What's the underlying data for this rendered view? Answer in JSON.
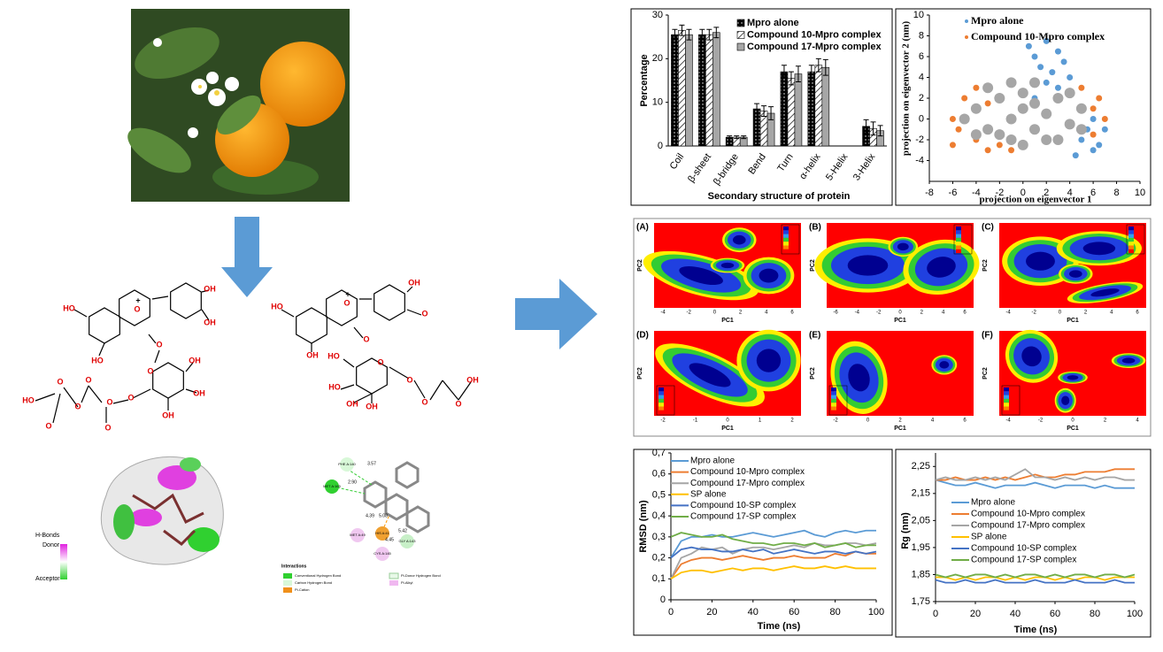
{
  "chart_data": [
    {
      "type": "bar",
      "ylabel": "Percentage",
      "xlabel": "Secondary structure of protein",
      "categories": [
        "Coil",
        "β-sheet",
        "β-bridge",
        "Bend",
        "Turn",
        "α-helix",
        "5-Helix",
        "3-Helix"
      ],
      "ylim": [
        0,
        30
      ],
      "yticks": [
        0,
        10,
        20,
        30
      ],
      "grid": false,
      "legend": "top-right",
      "series": [
        {
          "name": "Mpro alone",
          "color": "#000000",
          "pattern": "dots",
          "values": [
            25.5,
            25.5,
            2,
            8.5,
            17,
            17,
            0,
            4.5
          ],
          "errors": [
            1.2,
            1.2,
            0.3,
            1.2,
            1.5,
            1.5,
            0,
            1.5
          ]
        },
        {
          "name": "Compound 10-Mpro complex",
          "color": "#ffffff",
          "pattern": "hatch",
          "values": [
            26.5,
            25.5,
            2,
            8,
            15.5,
            18.5,
            0,
            4
          ],
          "errors": [
            1.2,
            1.2,
            0.3,
            1.2,
            1.5,
            1.5,
            0,
            1.5
          ]
        },
        {
          "name": "Compound 17-Mpro complex",
          "color": "#a6a6a6",
          "values": [
            25.5,
            26,
            2,
            7.5,
            16.5,
            18,
            0,
            3.5
          ],
          "errors": [
            1.2,
            1.2,
            0.3,
            1.5,
            1.8,
            1.8,
            0,
            1.2
          ]
        }
      ]
    },
    {
      "type": "scatter",
      "xlabel": "projection on eigenvector 1",
      "ylabel": "projection on eigenvector 2 (nm)",
      "xlim": [
        -8,
        10
      ],
      "xticks": [
        -8,
        -6,
        -4,
        -2,
        0,
        2,
        4,
        6,
        8,
        10
      ],
      "ylim": [
        -6,
        10
      ],
      "yticks": [
        -4,
        -2,
        0,
        2,
        4,
        6,
        8,
        10
      ],
      "legend": "top-left",
      "series": [
        {
          "name": "Mpro alone",
          "color": "#5b9bd5",
          "x": [
            1,
            2,
            1.5,
            3,
            2.5,
            0.5,
            3.5,
            4,
            2,
            5,
            6,
            5.5,
            6.5,
            4.5,
            6,
            7,
            1,
            3
          ],
          "y": [
            6,
            7.5,
            5,
            6.5,
            4.5,
            7,
            5.5,
            4,
            3.5,
            -2,
            -3,
            -1,
            -2.5,
            -3.5,
            0,
            -1,
            2,
            3
          ]
        },
        {
          "name": "Compound 10-Mpro complex",
          "color": "#ed7d31",
          "x": [
            -6,
            -5,
            -4,
            -5.5,
            -3,
            -4,
            -2,
            -1,
            6,
            7,
            6.5,
            5,
            -6,
            -3,
            6
          ],
          "y": [
            0,
            2,
            -2,
            -1,
            1.5,
            3,
            -2.5,
            -3,
            1,
            0,
            2,
            3,
            -2.5,
            -3,
            -1.5
          ]
        },
        {
          "color": "#a6a6a6",
          "x": [
            -5,
            -4,
            -3,
            -2,
            -1,
            0,
            1,
            2,
            3,
            4,
            5,
            -3,
            -1,
            1,
            3,
            0,
            -2,
            4,
            5,
            -4,
            2,
            0,
            -1,
            1
          ],
          "y": [
            0,
            1,
            -1,
            2,
            0,
            1,
            -1,
            0.5,
            2,
            -0.5,
            1,
            3,
            3.5,
            3.5,
            -2,
            -2.5,
            -1.5,
            2.5,
            -1,
            -1.5,
            -2,
            2.5,
            -2,
            1.5
          ]
        }
      ]
    },
    {
      "type": "line",
      "xlabel": "Time (ns)",
      "ylabel": "RMSD (nm)",
      "x": [
        0,
        5,
        10,
        15,
        20,
        25,
        30,
        35,
        40,
        45,
        50,
        55,
        60,
        65,
        70,
        75,
        80,
        85,
        90,
        95,
        100
      ],
      "xlim": [
        0,
        100
      ],
      "xticks": [
        0,
        20,
        40,
        60,
        80,
        100
      ],
      "ylim": [
        0,
        0.7
      ],
      "yticks": [
        0,
        {
          "value": 0.1,
          "label": "0,1"
        },
        {
          "value": 0.2,
          "label": "0,2"
        },
        {
          "value": 0.3,
          "label": "0,3"
        },
        {
          "value": 0.4,
          "label": "0,4"
        },
        {
          "value": 0.5,
          "label": "0,5"
        },
        {
          "value": 0.6,
          "label": "0,6"
        },
        {
          "value": 0.7,
          "label": "0,7"
        }
      ],
      "legend": "top-left",
      "series": [
        {
          "name": "Mpro alone",
          "color": "#5b9bd5",
          "values": [
            0.2,
            0.28,
            0.3,
            0.3,
            0.31,
            0.3,
            0.3,
            0.31,
            0.32,
            0.31,
            0.3,
            0.31,
            0.32,
            0.33,
            0.31,
            0.3,
            0.32,
            0.33,
            0.32,
            0.33,
            0.33
          ]
        },
        {
          "name": "Compound 10-Mpro complex",
          "color": "#ed7d31",
          "values": [
            0.1,
            0.17,
            0.19,
            0.2,
            0.2,
            0.19,
            0.2,
            0.21,
            0.2,
            0.19,
            0.2,
            0.2,
            0.21,
            0.2,
            0.2,
            0.2,
            0.22,
            0.21,
            0.23,
            0.22,
            0.22
          ]
        },
        {
          "name": "Compound 17-Mpro complex",
          "color": "#a5a5a5",
          "values": [
            0.1,
            0.2,
            0.22,
            0.25,
            0.24,
            0.25,
            0.22,
            0.24,
            0.25,
            0.25,
            0.24,
            0.25,
            0.26,
            0.25,
            0.27,
            0.26,
            0.26,
            0.27,
            0.27,
            0.26,
            0.27
          ]
        },
        {
          "name": "SP alone",
          "color": "#ffc000",
          "values": [
            0.1,
            0.13,
            0.14,
            0.14,
            0.13,
            0.14,
            0.15,
            0.14,
            0.15,
            0.15,
            0.14,
            0.15,
            0.16,
            0.15,
            0.15,
            0.16,
            0.15,
            0.16,
            0.15,
            0.15,
            0.15
          ]
        },
        {
          "name": "Compound 10-SP complex",
          "color": "#4472c4",
          "values": [
            0.2,
            0.24,
            0.25,
            0.24,
            0.24,
            0.23,
            0.23,
            0.24,
            0.23,
            0.24,
            0.22,
            0.23,
            0.24,
            0.23,
            0.22,
            0.23,
            0.23,
            0.22,
            0.23,
            0.22,
            0.23
          ]
        },
        {
          "name": "Compound 17-SP complex",
          "color": "#70ad47",
          "values": [
            0.3,
            0.32,
            0.31,
            0.3,
            0.3,
            0.31,
            0.29,
            0.28,
            0.27,
            0.27,
            0.26,
            0.27,
            0.27,
            0.26,
            0.27,
            0.25,
            0.26,
            0.27,
            0.25,
            0.26,
            0.26
          ]
        }
      ]
    },
    {
      "type": "line",
      "xlabel": "Time (ns)",
      "ylabel": "Rg (nm)",
      "x": [
        0,
        5,
        10,
        15,
        20,
        25,
        30,
        35,
        40,
        45,
        50,
        55,
        60,
        65,
        70,
        75,
        80,
        85,
        90,
        95,
        100
      ],
      "xlim": [
        0,
        100
      ],
      "xticks": [
        0,
        20,
        40,
        60,
        80,
        100
      ],
      "ylim": [
        1.75,
        2.3
      ],
      "yticks": [
        {
          "value": 1.75,
          "label": "1,75"
        },
        {
          "value": 1.85,
          "label": "1,85"
        },
        {
          "value": 1.95,
          "label": "1,95"
        },
        {
          "value": 2.05,
          "label": "2,05"
        },
        {
          "value": 2.15,
          "label": "2,15"
        },
        {
          "value": 2.25,
          "label": "2,25"
        }
      ],
      "legend": "center",
      "series": [
        {
          "name": "Mpro alone",
          "color": "#5b9bd5",
          "values": [
            2.2,
            2.19,
            2.18,
            2.18,
            2.19,
            2.18,
            2.17,
            2.18,
            2.18,
            2.18,
            2.19,
            2.18,
            2.17,
            2.18,
            2.18,
            2.18,
            2.17,
            2.18,
            2.17,
            2.17,
            2.17
          ]
        },
        {
          "name": "Compound 10-Mpro complex",
          "color": "#ed7d31",
          "values": [
            2.2,
            2.2,
            2.21,
            2.2,
            2.2,
            2.21,
            2.2,
            2.21,
            2.2,
            2.21,
            2.22,
            2.21,
            2.21,
            2.22,
            2.22,
            2.23,
            2.23,
            2.23,
            2.24,
            2.24,
            2.24
          ]
        },
        {
          "name": "Compound 17-Mpro complex",
          "color": "#a5a5a5",
          "values": [
            2.2,
            2.21,
            2.2,
            2.2,
            2.21,
            2.2,
            2.21,
            2.2,
            2.22,
            2.24,
            2.21,
            2.21,
            2.2,
            2.21,
            2.2,
            2.21,
            2.2,
            2.21,
            2.21,
            2.2,
            2.2
          ]
        },
        {
          "name": "SP alone",
          "color": "#ffc000",
          "values": [
            1.84,
            1.84,
            1.83,
            1.84,
            1.83,
            1.84,
            1.84,
            1.83,
            1.84,
            1.83,
            1.84,
            1.84,
            1.83,
            1.84,
            1.83,
            1.84,
            1.84,
            1.83,
            1.84,
            1.84,
            1.84
          ]
        },
        {
          "name": "Compound 10-SP complex",
          "color": "#4472c4",
          "values": [
            1.83,
            1.82,
            1.82,
            1.83,
            1.82,
            1.82,
            1.83,
            1.82,
            1.82,
            1.82,
            1.83,
            1.82,
            1.82,
            1.82,
            1.83,
            1.82,
            1.82,
            1.82,
            1.83,
            1.82,
            1.82
          ]
        },
        {
          "name": "Compound 17-SP complex",
          "color": "#70ad47",
          "values": [
            1.85,
            1.84,
            1.85,
            1.84,
            1.85,
            1.85,
            1.84,
            1.85,
            1.84,
            1.85,
            1.85,
            1.84,
            1.85,
            1.84,
            1.85,
            1.85,
            1.84,
            1.85,
            1.85,
            1.84,
            1.85
          ]
        }
      ]
    }
  ],
  "fel_panels": [
    {
      "label": "(A)",
      "xlabel": "PC1",
      "ylabel": "PC2",
      "xticks": [
        "-4",
        "-2",
        "0",
        "2",
        "4",
        "6"
      ]
    },
    {
      "label": "(B)",
      "xlabel": "PC1",
      "ylabel": "PC2",
      "xticks": [
        "-6",
        "-4",
        "-2",
        "0",
        "2",
        "4",
        "6"
      ]
    },
    {
      "label": "(C)",
      "xlabel": "PC1",
      "ylabel": "PC2",
      "xticks": [
        "-4",
        "-2",
        "0",
        "2",
        "4",
        "6"
      ]
    },
    {
      "label": "(D)",
      "xlabel": "PC1",
      "ylabel": "PC2",
      "xticks": [
        "-2",
        "-1",
        "0",
        "1",
        "2"
      ]
    },
    {
      "label": "(E)",
      "xlabel": "PC1",
      "ylabel": "PC2",
      "xticks": [
        "-2",
        "0",
        "2",
        "4",
        "6"
      ]
    },
    {
      "label": "(F)",
      "xlabel": "PC1",
      "ylabel": "PC2",
      "xticks": [
        "-4",
        "-2",
        "0",
        "2",
        "4"
      ]
    }
  ],
  "molecules": [
    {
      "labels": [
        "HO",
        "O",
        "OH",
        "OH",
        "HO",
        "O",
        "O",
        "OH",
        "OH",
        "OH",
        "O",
        "O",
        "O",
        "O",
        "O",
        "O",
        "O",
        "HO",
        "+"
      ]
    },
    {
      "labels": [
        "HO",
        "O",
        "OH",
        "O",
        "OH",
        "O",
        "HO",
        "O",
        "HO",
        "OH",
        "OH",
        "O",
        "O",
        "OH",
        "O",
        "+"
      ]
    }
  ],
  "docking": {
    "legend_title": "H-Bonds",
    "donor": "Donor",
    "acceptor": "Acceptor"
  },
  "interactions": {
    "residues": [
      "PHE A:140",
      "MET A:165",
      "HIS A:41",
      "MET A:49",
      "GLY A:143",
      "CYS A:145"
    ],
    "distances": [
      "3.57",
      "2.90",
      "4.39",
      "5.08",
      "5.42",
      "4.45"
    ],
    "legend_title": "Interactions",
    "legend": [
      "Conventional Hydrogen Bond",
      "Carbon Hydrogen Bond",
      "Pi-Cation",
      "Pi-Donor Hydrogen Bond",
      "Pi-Alkyl"
    ]
  }
}
